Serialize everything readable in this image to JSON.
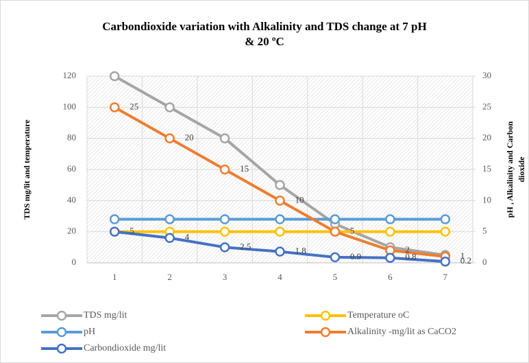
{
  "chart_data": {
    "type": "line",
    "title": [
      "Carbondioxide variation with Alkalinity and TDS change at 7 pH",
      "& 20 ºC"
    ],
    "ylabel": "TDS  mg/lit and temperature",
    "y2label": [
      "pH , Alkalinity and Carbon",
      "dioxide"
    ],
    "categories": [
      "1",
      "2",
      "3",
      "4",
      "5",
      "6",
      "7"
    ],
    "ylim": [
      0,
      120
    ],
    "yticks": [
      0,
      20,
      40,
      60,
      80,
      100,
      120
    ],
    "y2lim": [
      0,
      30
    ],
    "y2ticks": [
      0,
      5,
      10,
      15,
      20,
      25,
      30
    ],
    "grid": true,
    "series": [
      {
        "name": "TDS mg/lit",
        "color": "#a5a5a5",
        "values": [
          120,
          100,
          80,
          50,
          25,
          10,
          5
        ]
      },
      {
        "name": "Temperature  oC",
        "color": "#ffc000",
        "values": [
          20,
          20,
          20,
          20,
          20,
          20,
          20
        ]
      },
      {
        "name": "pH",
        "color": "#5b9bd5",
        "axis": "y2",
        "values": [
          7,
          7,
          7,
          7,
          7,
          7,
          7
        ]
      },
      {
        "name": "Alkalinity  -mg/lit as CaCO2",
        "color": "#ed7d31",
        "axis": "y2",
        "data_labels": true,
        "values": [
          25,
          20,
          15,
          10,
          5,
          2,
          1
        ]
      },
      {
        "name": "Carbondioxide  mg/lit",
        "color": "#4472c4",
        "axis": "y2",
        "data_labels": true,
        "values": [
          5,
          4,
          2.5,
          1.8,
          0.9,
          0.8,
          0.2
        ]
      }
    ]
  }
}
